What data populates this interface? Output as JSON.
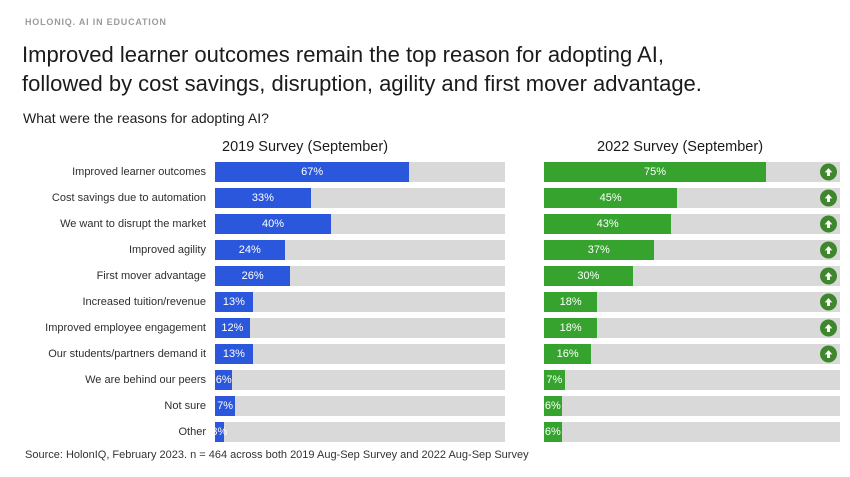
{
  "brand": "HOLONIQ. AI IN EDUCATION",
  "title": {
    "line1": "Improved learner outcomes remain the top reason for adopting AI,",
    "line2": "followed by cost savings, disruption, agility and first mover advantage."
  },
  "subtitle": "What were the reasons for adopting AI?",
  "source": "Source: HolonIQ, February 2023. n = 464 across both 2019 Aug-Sep Survey and 2022 Aug-Sep Survey",
  "colors": {
    "blue_2019": "#2b57dd",
    "green_2022": "#36a32f",
    "arrow_circle": "#3e872c",
    "track": "#d9d9d9"
  },
  "chart_data": {
    "type": "bar",
    "orientation": "horizontal",
    "title": "What were the reasons for adopting AI?",
    "value_suffix": "%",
    "xlim": [
      0,
      100
    ],
    "grid": false,
    "legend_position": "column-headers",
    "categories": [
      "Improved learner outcomes",
      "Cost savings due to automation",
      "We want to disrupt the market",
      "Improved agility",
      "First mover advantage",
      "Increased tuition/revenue",
      "Improved employee engagement",
      "Our students/partners demand it",
      "We are behind our peers",
      "Not sure",
      "Other"
    ],
    "series": [
      {
        "name": "2019 Survey (September)",
        "color": "#2b57dd",
        "values": [
          67,
          33,
          40,
          24,
          26,
          13,
          12,
          13,
          6,
          7,
          3
        ]
      },
      {
        "name": "2022 Survey (September)",
        "color": "#36a32f",
        "values": [
          75,
          45,
          43,
          37,
          30,
          18,
          18,
          16,
          7,
          6,
          6
        ],
        "increase_arrow": [
          true,
          true,
          true,
          true,
          true,
          true,
          true,
          true,
          false,
          false,
          false
        ]
      }
    ]
  }
}
